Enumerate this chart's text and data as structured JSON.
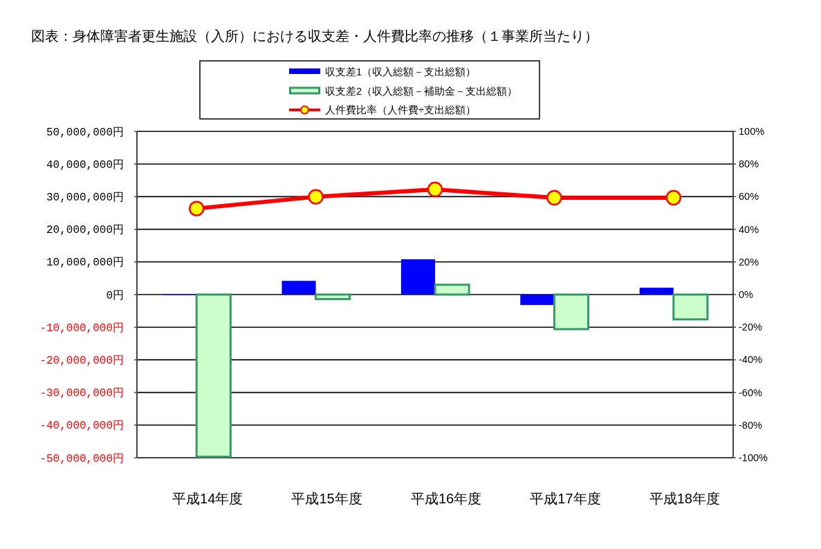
{
  "chart_data": {
    "type": "bar",
    "title": "図表：身体障害者更生施設（入所）における収支差・人件費比率の推移（１事業所当たり）",
    "categories": [
      "平成14年度",
      "平成15年度",
      "平成16年度",
      "平成17年度",
      "平成18年度"
    ],
    "series": [
      {
        "name": "収支差1（収入総額－支出総額）",
        "color": "#0000ff",
        "values": [
          -200000,
          4200000,
          10800000,
          -3200000,
          2100000
        ]
      },
      {
        "name": "収支差2（収入総額－補助金－支出総額）",
        "color": "#ccffcc",
        "values": [
          -49700000,
          -1400000,
          3000000,
          -10600000,
          -7600000
        ]
      },
      {
        "name": "人件費比率（人件費÷支出総額）",
        "type": "line",
        "axis": "y2",
        "color": "#ff0000",
        "marker": "circle",
        "values": [
          52.7,
          59.9,
          64.4,
          59.3,
          59.3
        ]
      }
    ],
    "ylim": [
      -50000000,
      50000000
    ],
    "yticks": [
      {
        "value": 50000000,
        "label": "50,000,000円"
      },
      {
        "value": 40000000,
        "label": "40,000,000円"
      },
      {
        "value": 30000000,
        "label": "30,000,000円"
      },
      {
        "value": 20000000,
        "label": "20,000,000円"
      },
      {
        "value": 10000000,
        "label": "10,000,000円"
      },
      {
        "value": 0,
        "label": "0円"
      },
      {
        "value": -10000000,
        "label": "-10,000,000円"
      },
      {
        "value": -20000000,
        "label": "-20,000,000円"
      },
      {
        "value": -30000000,
        "label": "-30,000,000円"
      },
      {
        "value": -40000000,
        "label": "-40,000,000円"
      },
      {
        "value": -50000000,
        "label": "-50,000,000円"
      }
    ],
    "y2lim": [
      -100,
      100
    ],
    "y2ticks": [
      {
        "value": 100,
        "label": "100%"
      },
      {
        "value": 80,
        "label": "80%"
      },
      {
        "value": 60,
        "label": "60%"
      },
      {
        "value": 40,
        "label": "40%"
      },
      {
        "value": 20,
        "label": "20%"
      },
      {
        "value": 0,
        "label": "0%"
      },
      {
        "value": -20,
        "label": "-20%"
      },
      {
        "value": -40,
        "label": "-40%"
      },
      {
        "value": -60,
        "label": "-60%"
      },
      {
        "value": -80,
        "label": "-80%"
      },
      {
        "value": -100,
        "label": "-100%"
      }
    ],
    "grid": "y",
    "legend": "top"
  }
}
